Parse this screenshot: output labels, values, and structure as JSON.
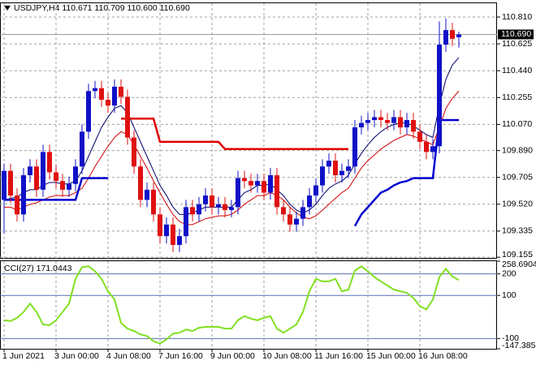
{
  "chart_data": [
    {
      "type": "candlestick",
      "title": "USDJPY,H4  110.671 110.709 110.600 110.690",
      "categories": [
        "1 Jun 2021",
        null,
        null,
        null,
        null,
        null,
        null,
        null,
        "3 Jun 00:00",
        null,
        null,
        null,
        null,
        null,
        null,
        null,
        "4 Jun 08:00",
        null,
        null,
        null,
        null,
        null,
        null,
        null,
        "7 Jun 16:00",
        null,
        null,
        null,
        null,
        null,
        null,
        null,
        "9 Jun 00:00",
        null,
        null,
        null,
        null,
        null,
        null,
        null,
        "10 Jun 08:00",
        null,
        null,
        null,
        null,
        null,
        null,
        null,
        "11 Jun 16:00",
        null,
        null,
        null,
        null,
        null,
        null,
        null,
        "15 Jun 00:00",
        null,
        null,
        null,
        null,
        null,
        null,
        null,
        "16 Jun 08:00",
        null,
        null,
        null,
        null,
        null,
        null
      ],
      "open": [
        109.55,
        109.75,
        109.58,
        109.45,
        109.72,
        109.78,
        109.62,
        109.88,
        109.74,
        109.68,
        109.62,
        109.66,
        109.78,
        110.02,
        110.3,
        110.32,
        110.24,
        110.2,
        110.33,
        110.26,
        109.98,
        109.78,
        109.55,
        109.62,
        109.45,
        109.3,
        109.38,
        109.24,
        109.3,
        109.5,
        109.45,
        109.52,
        109.58,
        109.5,
        109.52,
        109.48,
        109.5,
        109.7,
        109.68,
        109.65,
        109.68,
        109.6,
        109.72,
        109.5,
        109.45,
        109.38,
        109.42,
        109.5,
        109.58,
        109.65,
        109.78,
        109.82,
        109.72,
        109.75,
        109.78,
        110.05,
        110.08,
        110.1,
        110.12,
        110.1,
        110.08,
        110.12,
        110.05,
        110.1,
        110.02,
        109.95,
        109.88,
        109.92,
        110.62,
        110.72,
        110.671
      ],
      "high": [
        109.8,
        109.8,
        109.63,
        109.77,
        109.83,
        109.83,
        109.93,
        109.93,
        109.79,
        109.73,
        109.71,
        109.83,
        110.07,
        110.35,
        110.37,
        110.37,
        110.29,
        110.38,
        110.38,
        110.31,
        110.03,
        109.83,
        109.67,
        109.67,
        109.5,
        109.43,
        109.43,
        109.35,
        109.55,
        109.55,
        109.57,
        109.63,
        109.63,
        109.57,
        109.57,
        109.55,
        109.75,
        109.75,
        109.73,
        109.73,
        109.73,
        109.77,
        109.77,
        109.55,
        109.5,
        109.47,
        109.55,
        109.63,
        109.7,
        109.83,
        109.87,
        109.87,
        109.8,
        109.83,
        110.1,
        110.13,
        110.15,
        110.17,
        110.17,
        110.15,
        110.17,
        110.17,
        110.15,
        110.15,
        110.07,
        110.0,
        109.97,
        110.78,
        110.8,
        110.77,
        110.709
      ],
      "low": [
        109.32,
        109.53,
        109.4,
        109.4,
        109.67,
        109.57,
        109.57,
        109.69,
        109.63,
        109.57,
        109.57,
        109.61,
        109.73,
        109.97,
        110.25,
        110.19,
        110.15,
        110.15,
        110.21,
        109.93,
        109.73,
        109.5,
        109.5,
        109.4,
        109.25,
        109.25,
        109.19,
        109.19,
        109.25,
        109.4,
        109.4,
        109.47,
        109.45,
        109.45,
        109.43,
        109.43,
        109.45,
        109.63,
        109.6,
        109.6,
        109.55,
        109.55,
        109.45,
        109.4,
        109.33,
        109.33,
        109.37,
        109.45,
        109.53,
        109.6,
        109.73,
        109.67,
        109.67,
        109.7,
        109.73,
        110.0,
        110.03,
        110.05,
        110.05,
        110.03,
        110.03,
        110.0,
        110.0,
        109.97,
        109.9,
        109.83,
        109.83,
        109.87,
        110.57,
        110.61,
        110.6
      ],
      "close": [
        109.75,
        109.58,
        109.45,
        109.72,
        109.78,
        109.62,
        109.88,
        109.74,
        109.68,
        109.62,
        109.66,
        109.78,
        110.02,
        110.3,
        110.32,
        110.24,
        110.2,
        110.33,
        110.26,
        109.98,
        109.78,
        109.55,
        109.62,
        109.45,
        109.3,
        109.38,
        109.24,
        109.3,
        109.5,
        109.45,
        109.52,
        109.58,
        109.5,
        109.52,
        109.48,
        109.5,
        109.7,
        109.68,
        109.65,
        109.68,
        109.6,
        109.72,
        109.5,
        109.45,
        109.38,
        109.42,
        109.5,
        109.58,
        109.65,
        109.78,
        109.82,
        109.72,
        109.75,
        109.78,
        110.05,
        110.08,
        110.1,
        110.12,
        110.1,
        110.08,
        110.12,
        110.05,
        110.1,
        110.02,
        109.95,
        109.88,
        109.92,
        110.62,
        110.72,
        110.66,
        110.69
      ],
      "last_price_label": "110.690",
      "bull_color": "#1010c8",
      "bear_color": "#e01010",
      "series": [
        {
          "color": "#00006e",
          "width": 1,
          "values": [
            109.55,
            109.56,
            109.57,
            109.6,
            109.62,
            109.62,
            109.65,
            109.67,
            109.67,
            109.66,
            109.66,
            109.68,
            109.75,
            109.85,
            109.95,
            110.05,
            110.12,
            110.18,
            110.2,
            110.15,
            110.05,
            109.95,
            109.85,
            109.75,
            109.65,
            109.58,
            109.5,
            109.45,
            109.45,
            109.46,
            109.48,
            109.5,
            109.5,
            109.5,
            109.5,
            109.5,
            109.55,
            109.6,
            109.62,
            109.65,
            109.65,
            109.66,
            109.62,
            109.58,
            109.52,
            109.48,
            109.46,
            109.48,
            109.52,
            109.58,
            109.63,
            109.66,
            109.68,
            109.72,
            109.8,
            109.87,
            109.93,
            109.98,
            110.02,
            110.05,
            110.07,
            110.08,
            110.08,
            110.06,
            110.03,
            110.0,
            109.98,
            110.2,
            110.38,
            110.48,
            110.53
          ]
        },
        {
          "color": "#d00000",
          "width": 1,
          "values": [
            109.5,
            109.5,
            109.48,
            109.5,
            109.52,
            109.53,
            109.55,
            109.57,
            109.58,
            109.58,
            109.58,
            109.6,
            109.63,
            109.7,
            109.78,
            109.85,
            109.92,
            109.98,
            110.02,
            110.0,
            109.93,
            109.85,
            109.77,
            109.68,
            109.6,
            109.52,
            109.45,
            109.4,
            109.38,
            109.38,
            109.4,
            109.42,
            109.43,
            109.44,
            109.44,
            109.45,
            109.48,
            109.52,
            109.55,
            109.58,
            109.58,
            109.6,
            109.58,
            109.55,
            109.5,
            109.46,
            109.43,
            109.42,
            109.44,
            109.48,
            109.52,
            109.56,
            109.6,
            109.63,
            109.7,
            109.77,
            109.82,
            109.86,
            109.9,
            109.93,
            109.96,
            109.98,
            110.0,
            109.99,
            109.97,
            109.95,
            109.93,
            110.05,
            110.18,
            110.25,
            110.3
          ]
        },
        {
          "color": "#e00000",
          "width": 2.5,
          "values": [
            null,
            null,
            null,
            null,
            null,
            null,
            null,
            null,
            null,
            null,
            null,
            null,
            null,
            null,
            null,
            null,
            null,
            null,
            110.11,
            110.11,
            110.11,
            110.11,
            110.11,
            110.11,
            109.95,
            109.95,
            109.95,
            109.95,
            109.95,
            109.95,
            109.95,
            109.95,
            109.95,
            109.95,
            109.9,
            109.9,
            109.9,
            109.9,
            109.9,
            109.9,
            109.9,
            109.9,
            109.9,
            109.9,
            109.9,
            109.9,
            109.9,
            109.9,
            109.9,
            109.9,
            109.9,
            109.9,
            109.9,
            109.9,
            null,
            null,
            null,
            null,
            null,
            null,
            null,
            null,
            null,
            null,
            null,
            null,
            null,
            null,
            null,
            null,
            null
          ]
        },
        {
          "color": "#0000d0",
          "width": 2.5,
          "values": [
            109.55,
            109.55,
            109.55,
            109.55,
            109.55,
            109.55,
            109.55,
            109.55,
            109.55,
            109.55,
            109.55,
            109.55,
            109.7,
            109.7,
            109.7,
            109.7,
            109.7,
            null,
            null,
            null,
            null,
            null,
            null,
            null,
            null,
            null,
            null,
            null,
            null,
            null,
            null,
            null,
            null,
            null,
            null,
            null,
            null,
            null,
            null,
            null,
            null,
            null,
            null,
            null,
            null,
            null,
            null,
            null,
            null,
            null,
            null,
            null,
            null,
            null,
            109.37,
            109.45,
            109.5,
            109.55,
            109.6,
            109.62,
            109.65,
            109.67,
            109.68,
            109.7,
            109.7,
            109.7,
            109.7,
            110.1,
            110.1,
            110.1,
            110.1
          ]
        }
      ],
      "ylim": [
        109.15,
        110.905
      ],
      "yticks": [
        {
          "value": 110.81,
          "label": "110.810"
        },
        110.625,
        {
          "value": 110.44,
          "label": "110.440"
        },
        110.255,
        {
          "value": 110.07,
          "label": "110.070"
        },
        {
          "value": 109.89,
          "label": "109.890"
        },
        109.705,
        {
          "value": 109.52,
          "label": "109.520"
        },
        109.335,
        109.155
      ],
      "grid": true
    },
    {
      "type": "line",
      "title": "CCI(27) 171.0443",
      "series": [
        {
          "color": "#80e020",
          "width": 2,
          "values": [
            -15,
            -19,
            -4,
            23,
            62,
            23,
            -35,
            -38,
            -15,
            23,
            62,
            177,
            231,
            235,
            212,
            177,
            119,
            81,
            -27,
            -54,
            -65,
            -81,
            -88,
            -112,
            -123,
            -104,
            -77,
            -73,
            -58,
            -65,
            -50,
            -46,
            -46,
            -46,
            -54,
            -54,
            -15,
            4,
            -8,
            -15,
            -4,
            4,
            -54,
            -73,
            -54,
            -35,
            23,
            119,
            177,
            165,
            165,
            177,
            119,
            127,
            215,
            235,
            212,
            185,
            165,
            146,
            127,
            119,
            112,
            88,
            50,
            35,
            81,
            185,
            223,
            188,
            171.0443
          ]
        }
      ],
      "ylim": [
        -147.3853,
        258.6904
      ],
      "yticks": [
        258.6904,
        200,
        100,
        -100,
        -147.3853
      ],
      "level_color": "#5a6fb8"
    }
  ]
}
